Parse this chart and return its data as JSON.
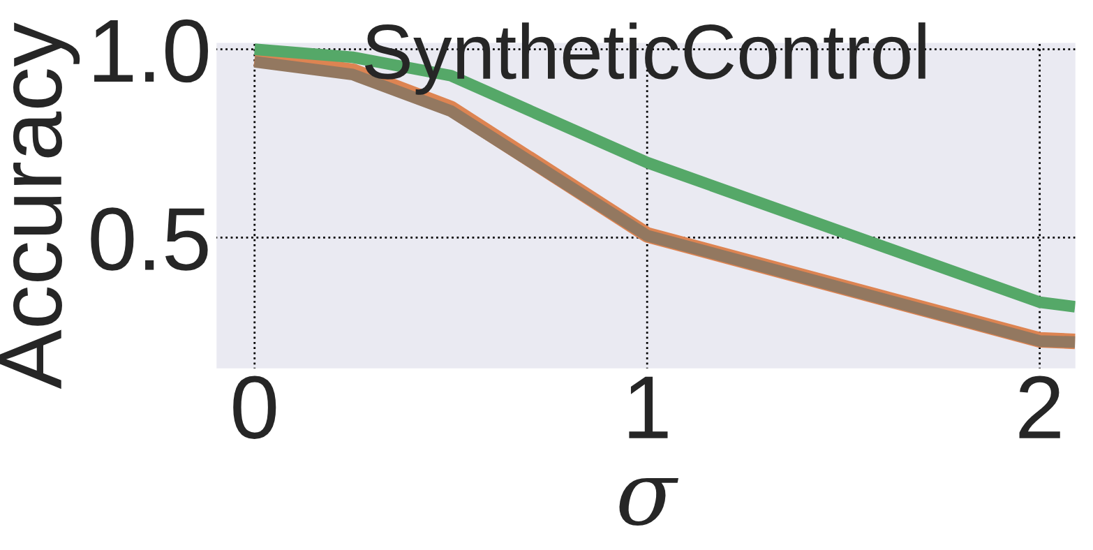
{
  "chart_data": {
    "type": "line",
    "title": "SyntheticControl",
    "xlabel": "σ",
    "ylabel": "Accuracy",
    "x": [
      0,
      0.25,
      0.5,
      1,
      2,
      2.09
    ],
    "series": [
      {
        "color": "#dd8452",
        "values": [
          0.976,
          0.942,
          0.843,
          0.507,
          0.228,
          0.224
        ]
      },
      {
        "color": "#55a868",
        "values": [
          1.0,
          0.979,
          0.93,
          0.699,
          0.328,
          0.316
        ]
      },
      {
        "color": "#937860",
        "values": [
          0.967,
          0.933,
          0.836,
          0.505,
          0.225,
          0.222
        ]
      }
    ],
    "xlim": [
      -0.1,
      2.094
    ],
    "xticks": [
      0,
      1,
      2
    ],
    "ylim": [
      0.149,
      1.02
    ],
    "yticks": [
      {
        "value": 0.5,
        "label": "0.5"
      },
      {
        "value": 1.0,
        "label": "1.0"
      }
    ],
    "grid": true,
    "marker": "none",
    "line_style": "solid"
  }
}
